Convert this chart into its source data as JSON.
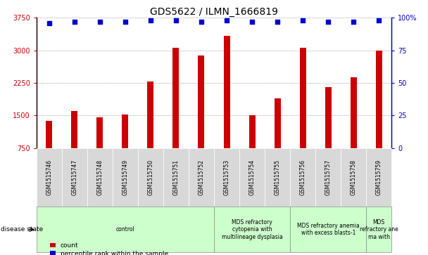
{
  "title": "GDS5622 / ILMN_1666819",
  "samples": [
    "GSM1515746",
    "GSM1515747",
    "GSM1515748",
    "GSM1515749",
    "GSM1515750",
    "GSM1515751",
    "GSM1515752",
    "GSM1515753",
    "GSM1515754",
    "GSM1515755",
    "GSM1515756",
    "GSM1515757",
    "GSM1515758",
    "GSM1515759"
  ],
  "counts": [
    1380,
    1600,
    1450,
    1520,
    2280,
    3060,
    2880,
    3340,
    1500,
    1900,
    3060,
    2150,
    2380,
    2990
  ],
  "percentile_ranks": [
    96,
    97,
    97,
    97,
    98,
    98,
    97,
    98,
    97,
    97,
    98,
    97,
    97,
    98
  ],
  "disease_groups": [
    {
      "label": "control",
      "start": 0,
      "end": 7,
      "color": "#ccffcc"
    },
    {
      "label": "MDS refractory\ncytopenia with\nmultilineage dysplasia",
      "start": 7,
      "end": 10,
      "color": "#ccffcc"
    },
    {
      "label": "MDS refractory anemia\nwith excess blasts-1",
      "start": 10,
      "end": 13,
      "color": "#ccffcc"
    },
    {
      "label": "MDS\nrefractory ane\nma with",
      "start": 13,
      "end": 14,
      "color": "#ccffcc"
    }
  ],
  "ylim_left": [
    750,
    3750
  ],
  "ylim_right": [
    0,
    100
  ],
  "yticks_left": [
    750,
    1500,
    2250,
    3000,
    3750
  ],
  "yticks_right": [
    0,
    25,
    50,
    75,
    100
  ],
  "bar_color": "#cc0000",
  "dot_color": "#0000cc",
  "sample_bg_color": "#d8d8d8",
  "plot_bg_color": "#ffffff",
  "title_fontsize": 10,
  "tick_fontsize": 7,
  "sample_fontsize": 5.5,
  "disease_fontsize": 5.5,
  "legend_fontsize": 6.5,
  "bar_width": 0.25
}
